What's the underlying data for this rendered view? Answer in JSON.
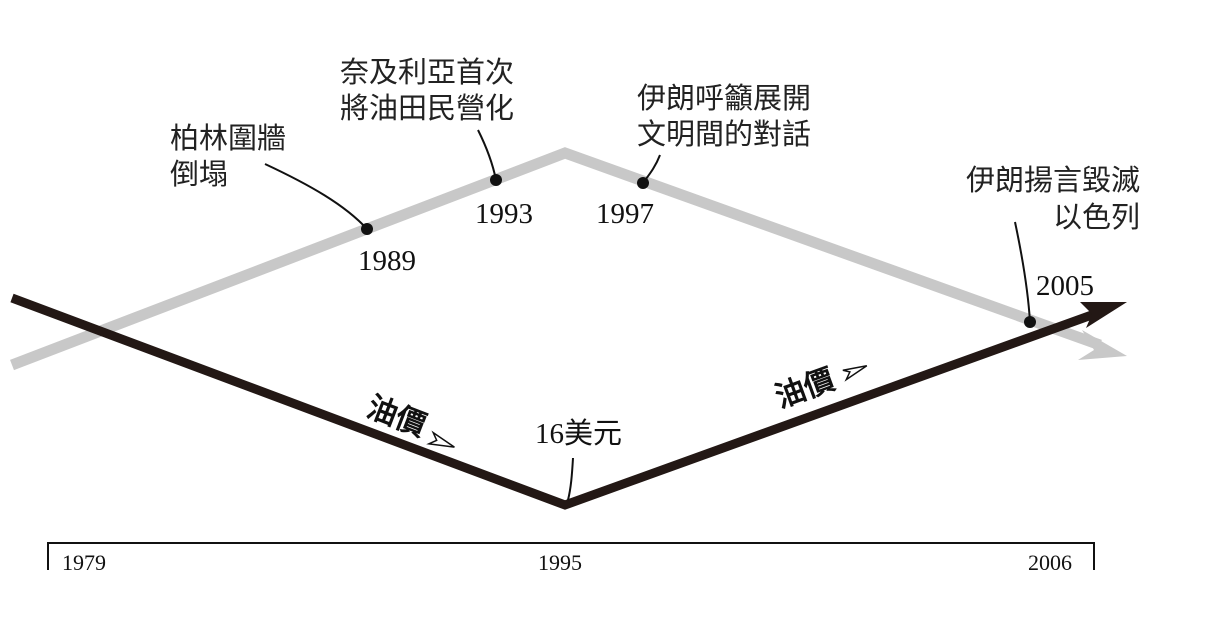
{
  "events": [
    {
      "label": [
        "柏林圍牆",
        "倒塌"
      ],
      "year": "1989"
    },
    {
      "label": [
        "奈及利亞首次",
        "將油田民營化"
      ],
      "year": "1993"
    },
    {
      "label": [
        "伊朗呼籲展開",
        "文明間的對話"
      ],
      "year": "1997"
    },
    {
      "label": [
        "伊朗揚言毀滅",
        "以色列"
      ],
      "year": "2005"
    }
  ],
  "oil_price": {
    "falling_label": "油價",
    "rising_label": "油價",
    "low_label": "16美元"
  },
  "timeline": {
    "start": "1979",
    "middle": "1995",
    "end": "2006"
  }
}
